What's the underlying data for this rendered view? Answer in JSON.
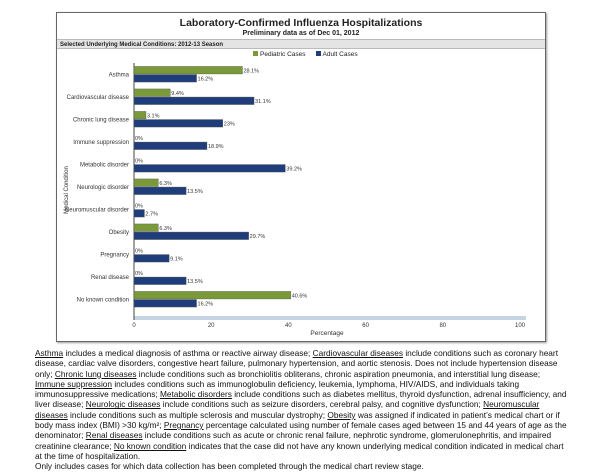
{
  "chart_data": {
    "type": "bar",
    "orientation": "horizontal",
    "title": "Laboratory-Confirmed Influenza Hospitalizations",
    "subtitle": "Preliminary data as of Dec 01, 2012",
    "section_header": "Selected Underlying Medical Conditions: 2012-13 Season",
    "xlabel": "Percentage",
    "ylabel": "Medical Condition",
    "xlim": [
      0,
      100
    ],
    "xticks": [
      "0",
      "20",
      "40",
      "60",
      "80",
      "100"
    ],
    "legend_position": "top",
    "categories": [
      "Asthma",
      "Cardiovascular disease",
      "Chronic lung disease",
      "Immune suppression",
      "Metabolic disorder",
      "Neurologic disorder",
      "Neuromuscular disorder",
      "Obesity",
      "Pregnancy",
      "Renal disease",
      "No known condition"
    ],
    "series": [
      {
        "name": "Pediatric Cases",
        "color": "#7a9a3a",
        "values": [
          28.1,
          9.4,
          3.1,
          0,
          0,
          6.3,
          0,
          6.3,
          0,
          0,
          40.6
        ],
        "labels": [
          "28.1%",
          "9.4%",
          "3.1%",
          "0%",
          "0%",
          "6.3%",
          "0%",
          "6.3%",
          "0%",
          "0%",
          "40.6%"
        ]
      },
      {
        "name": "Adult Cases",
        "color": "#1f3d7a",
        "values": [
          16.2,
          31.1,
          23,
          18.9,
          39.2,
          13.5,
          2.7,
          29.7,
          9.1,
          13.5,
          16.2
        ],
        "labels": [
          "16.2%",
          "31.1%",
          "23%",
          "18.9%",
          "39.2%",
          "13.5%",
          "2.7%",
          "29.7%",
          "9.1%",
          "13.5%",
          "16.2%"
        ]
      }
    ]
  },
  "notes": {
    "segments": [
      {
        "u": "Asthma"
      },
      {
        "t": " includes a medical diagnosis of asthma or reactive airway disease; "
      },
      {
        "u": "Cardiovascular diseases"
      },
      {
        "t": " include conditions such as coronary heart disease, cardiac valve disorders, congestive heart failure, pulmonary hypertension, and aortic stenosis.  Does not include hypertension disease only;  "
      },
      {
        "u": "Chronic lung diseases"
      },
      {
        "t": " include conditions such as bronchiolitis obliterans, chronic aspiration pneumonia, and interstitial lung disease;  "
      },
      {
        "u": "Immune suppression"
      },
      {
        "t": " includes conditions such as immunoglobulin deficiency, leukemia, lymphoma, HIV/AIDS,  and individuals taking immunosuppressive medications;  "
      },
      {
        "u": "Metabolic disorders"
      },
      {
        "t": " include conditions such as diabetes mellitus, thyroid dysfunction, adrenal insufficiency, and liver disease;  "
      },
      {
        "u": "Neurologic diseases"
      },
      {
        "t": " include conditions such as seizure disorders, cerebral palsy, and cognitive dysfunction;  "
      },
      {
        "u": "Neuromuscular diseases"
      },
      {
        "t": " include conditions such as multiple sclerosis and muscular dystrophy;  "
      },
      {
        "u": "Obesity"
      },
      {
        "t": " was assigned if indicated in patient’s medical chart or if body mass index (BMI) >30 kg/m²;  "
      },
      {
        "u": "Pregnancy"
      },
      {
        "t": " percentage calculated using number of female cases aged between 15 and 44 years of age as the denominator;  "
      },
      {
        "u": "Renal diseases"
      },
      {
        "t": " include conditions such as acute or chronic renal failure, nephrotic syndrome, glomerulonephritis, and impaired creatinine clearance;  "
      },
      {
        "u": "No known condition"
      },
      {
        "t": " indicates that the case did not have any known underlying medical condition indicated in medical chart at the time of hospitalization."
      }
    ],
    "last_line": "Only includes cases for which data collection has been completed through the medical chart review stage."
  }
}
